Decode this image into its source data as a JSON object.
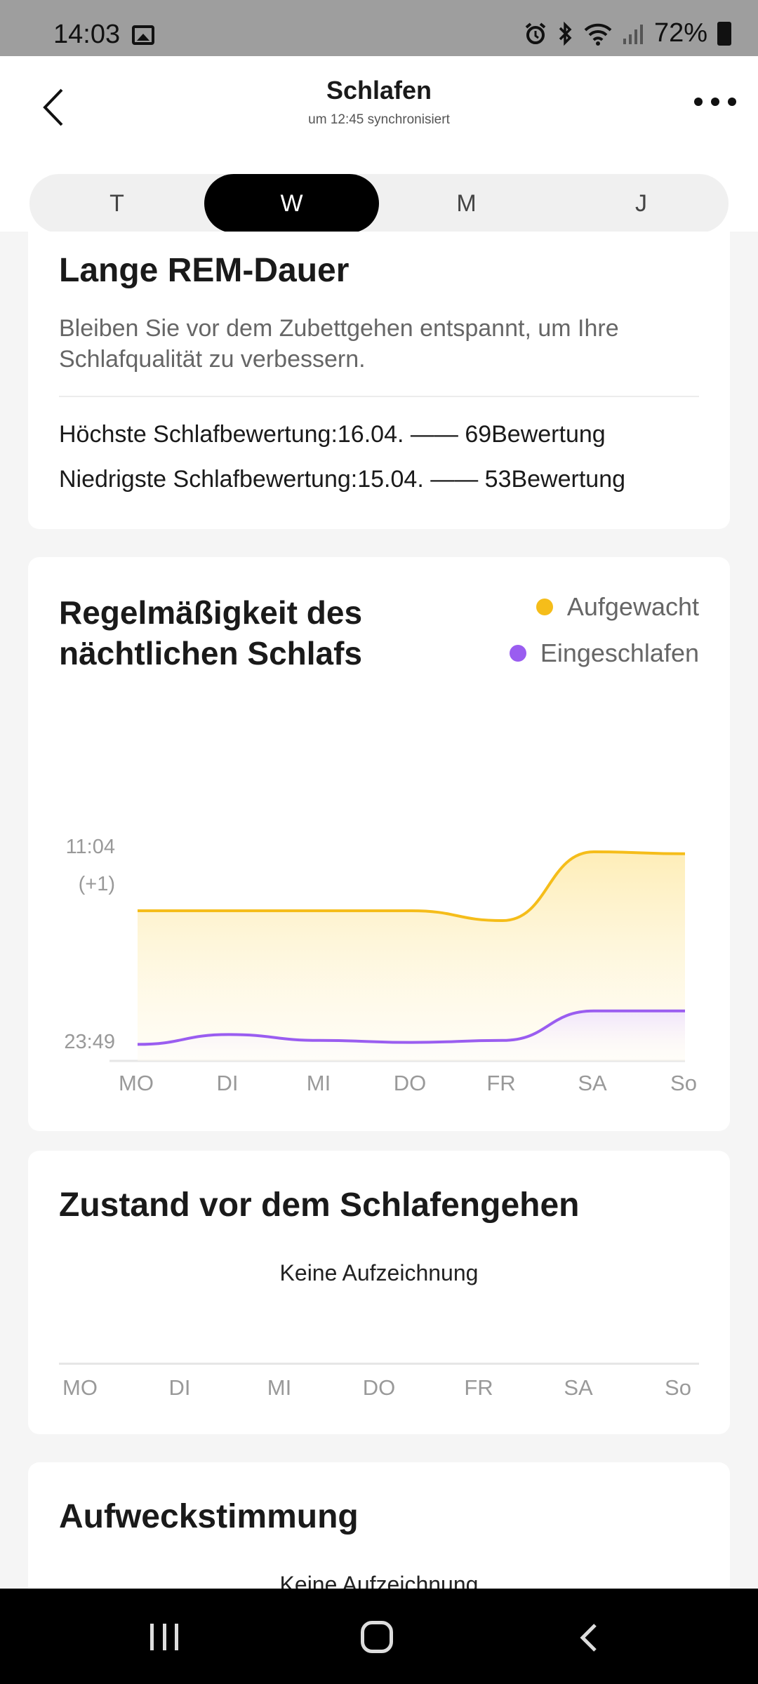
{
  "status_bar": {
    "time": "14:03",
    "battery": "72%"
  },
  "header": {
    "title": "Schlafen",
    "subtitle": "um 12:45 synchronisiert"
  },
  "period_tabs": [
    {
      "label": "T",
      "active": false
    },
    {
      "label": "W",
      "active": true
    },
    {
      "label": "M",
      "active": false
    },
    {
      "label": "J",
      "active": false
    }
  ],
  "rem_card": {
    "title": "Lange REM-Dauer",
    "description": "Bleiben Sie vor dem Zubettgehen entspannt, um Ihre Schlafqualität zu verbessern.",
    "highest": "Höchste Schlafbewertung:16.04. —— 69Bewertung",
    "lowest": "Niedrigste Schlafbewertung:15.04. —— 53Bewertung"
  },
  "regularity_card": {
    "title": "Regelmäßigkeit des nächtlichen Schlafs",
    "legend_awake": "Aufgewacht",
    "legend_asleep": "Eingeschlafen",
    "colors": {
      "awake": "#f5bd1a",
      "asleep": "#9a5df0"
    }
  },
  "chart_data": {
    "type": "line",
    "categories": [
      "MO",
      "DI",
      "MI",
      "DO",
      "FR",
      "SA",
      "So"
    ],
    "y_tick_labels": [
      "11:04",
      "(+1)",
      "23:49"
    ],
    "series": [
      {
        "name": "Aufgewacht",
        "values": [
          0.7,
          0.7,
          0.7,
          0.7,
          0.65,
          1.0,
          0.99
        ]
      },
      {
        "name": "Eingeschlafen",
        "values": [
          0.02,
          0.07,
          0.04,
          0.03,
          0.04,
          0.19,
          0.19
        ]
      }
    ],
    "ylim": [
      0,
      1
    ],
    "grid": false,
    "legend_position": "top-right"
  },
  "pre_sleep_card": {
    "title": "Zustand vor dem Schlafengehen",
    "empty_text": "Keine Aufzeichnung",
    "days": [
      "MO",
      "DI",
      "MI",
      "DO",
      "FR",
      "SA",
      "So"
    ]
  },
  "wake_mood_card": {
    "title": "Aufweckstimmung",
    "empty_text": "Keine Aufzeichnung"
  }
}
